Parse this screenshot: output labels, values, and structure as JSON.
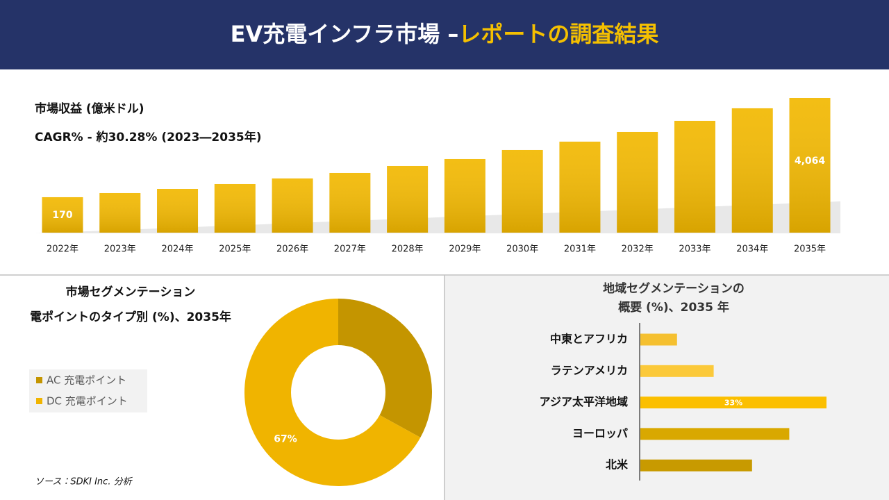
{
  "header": {
    "title": "EV充電インフラ市場 –",
    "title_highlight": "レポートの調査結果"
  },
  "source": "ソース：SDKI Inc. 分析",
  "chart_data": [
    {
      "type": "bar",
      "title": "市場収益 (億米ドル)",
      "subtitle": "CAGR% - 約30.28% (2023―2035年)",
      "categories": [
        "2022年",
        "2023年",
        "2024年",
        "2025年",
        "2026年",
        "2027年",
        "2028年",
        "2029年",
        "2030年",
        "2031年",
        "2032年",
        "2033年",
        "2034年",
        "2035年"
      ],
      "values": [
        170,
        333,
        496,
        687,
        905,
        1123,
        1395,
        1668,
        2022,
        2349,
        2730,
        3166,
        3657,
        4064
      ],
      "value_labels": [
        "170",
        null,
        null,
        null,
        null,
        null,
        null,
        null,
        null,
        null,
        null,
        null,
        null,
        "4,064"
      ],
      "color": "#f2b800",
      "ylim": [
        -1220,
        4064
      ]
    },
    {
      "type": "donut",
      "title": "市場セグメンテーション",
      "subtitle": "電ポイントのタイプ別 (%)、2035年",
      "categories": [
        "AC 充電ポイント",
        "DC 充電ポイント"
      ],
      "values": [
        33,
        67
      ],
      "value_labels": [
        null,
        "67%"
      ],
      "colors": [
        "#c49500",
        "#f0b400"
      ]
    },
    {
      "type": "hbar",
      "title": "地域セグメンテーションの",
      "subtitle": "概要 (%)、2035 年",
      "categories": [
        "中東とアフリカ",
        "ラテンアメリカ",
        "アジア太平洋地域",
        "ヨーロッパ",
        "北米"
      ],
      "values": [
        6.5,
        13,
        33,
        26.4,
        19.8
      ],
      "value_labels": [
        null,
        null,
        "33%",
        null,
        null
      ],
      "colors": [
        "#f5c030",
        "#fbc93a",
        "#fbbf00",
        "#d9a800",
        "#c89a00"
      ],
      "xlim": [
        0,
        33
      ]
    }
  ]
}
